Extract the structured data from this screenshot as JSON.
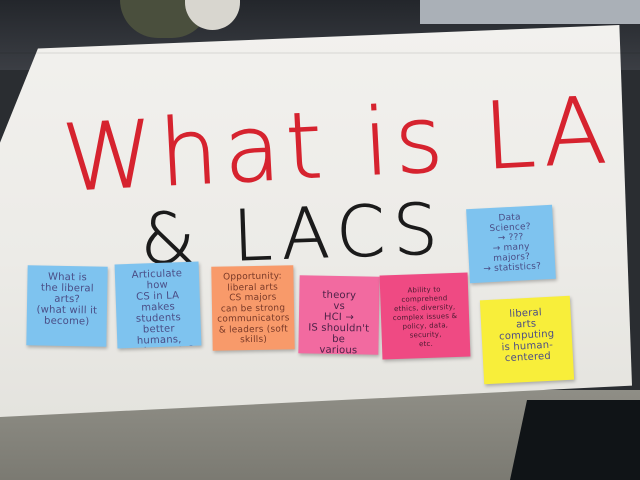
{
  "poster": {
    "title_line1": "What is LA",
    "title_line2": "& LACS"
  },
  "notes": [
    {
      "text": "What is\nthe liberal\narts?\n(what will it become)",
      "color": "blue"
    },
    {
      "text": "Articulate how\nCS in LA\nmakes students\nbetter humans,\nworkers, etc?",
      "color": "blue"
    },
    {
      "text": "Opportunity:\nliberal arts\nCS majors\ncan be strong\ncommunicators\n& leaders (soft skills)",
      "color": "orange"
    },
    {
      "text": "theory\nvs\nHCI →\nIS shouldn't be\nvarious",
      "color": "pink"
    },
    {
      "text": "Ability to comprehend\nethics, diversity,\ncomplex issues &\npolicy, data, security,\netc.",
      "color": "magenta"
    },
    {
      "text": "Data\nScience?\n→ ???\n→ many majors?\n→ statistics?",
      "color": "blue"
    },
    {
      "text": "liberal\narts\ncomputing\nis human-\ncentered",
      "color": "yellow"
    }
  ],
  "colors": {
    "title_red": "#d6232f",
    "title_black": "#1b1b1b"
  }
}
